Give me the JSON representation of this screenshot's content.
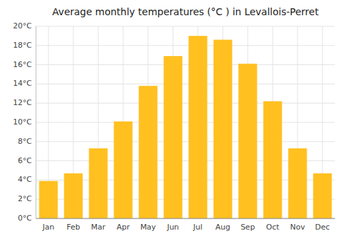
{
  "chart_data": {
    "type": "bar",
    "title": "Average monthly temperatures (°C ) in Levallois-Perret",
    "categories": [
      "Jan",
      "Feb",
      "Mar",
      "Apr",
      "May",
      "Jun",
      "Jul",
      "Aug",
      "Sep",
      "Oct",
      "Nov",
      "Dec"
    ],
    "values": [
      3.9,
      4.7,
      7.3,
      10.1,
      13.8,
      16.9,
      19.0,
      18.6,
      16.1,
      12.2,
      7.3,
      4.7
    ],
    "color": "#FFC020",
    "ylim": [
      0,
      20
    ],
    "yticks": [
      {
        "value": 0,
        "label": "0°C"
      },
      {
        "value": 2,
        "label": "2°C"
      },
      {
        "value": 4,
        "label": "4°C"
      },
      {
        "value": 6,
        "label": "6°C"
      },
      {
        "value": 8,
        "label": "8°C"
      },
      {
        "value": 10,
        "label": "10°C"
      },
      {
        "value": 12,
        "label": "12°C"
      },
      {
        "value": 14,
        "label": "14°C"
      },
      {
        "value": 16,
        "label": "16°C"
      },
      {
        "value": 18,
        "label": "18°C"
      },
      {
        "value": 20,
        "label": "20°C"
      }
    ],
    "grid": true
  }
}
